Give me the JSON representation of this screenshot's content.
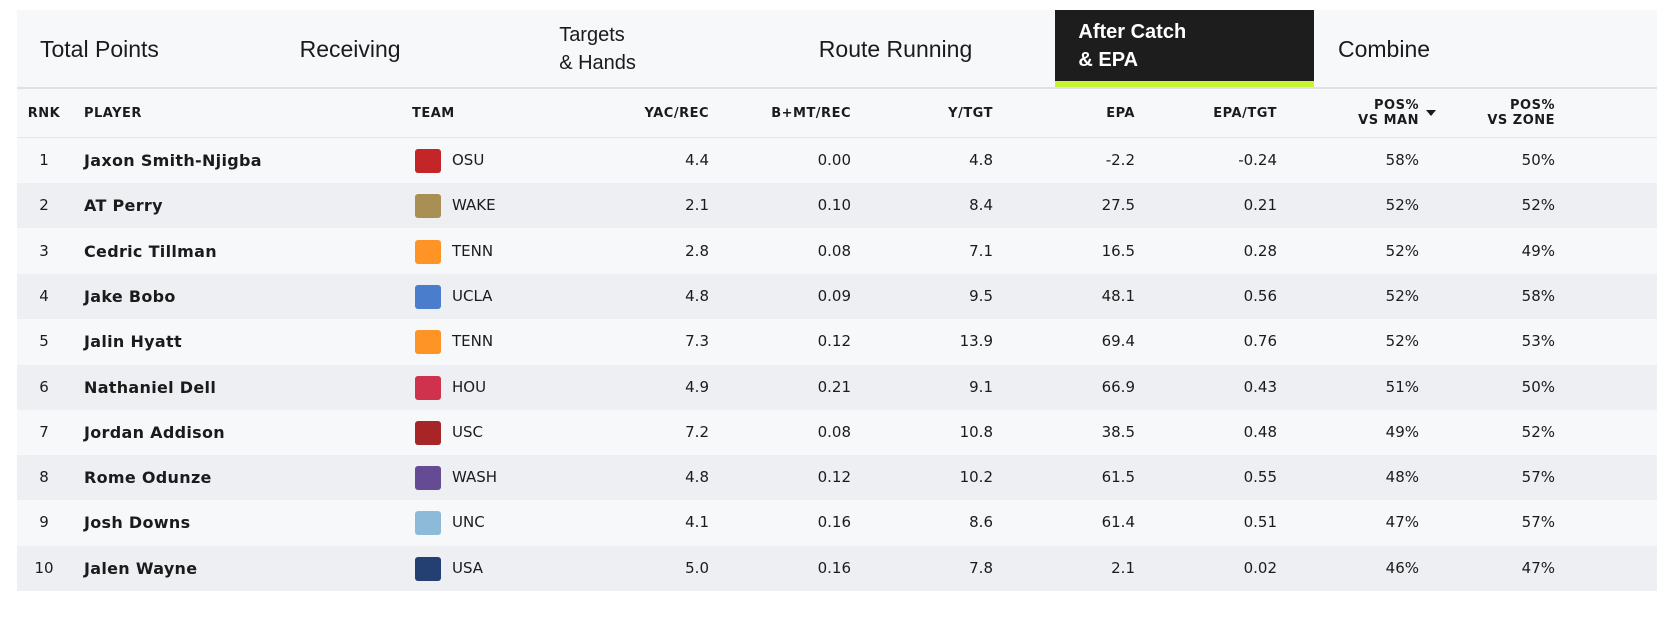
{
  "tabs": [
    [
      "Total Points"
    ],
    [
      "Receiving"
    ],
    [
      "Targets",
      "& Hands"
    ],
    [
      "Route Running"
    ],
    [
      "After Catch",
      "& EPA"
    ],
    [
      "Combine"
    ]
  ],
  "table": {
    "columns": [
      [
        "RNK"
      ],
      [
        "PLAYER"
      ],
      [
        "TEAM"
      ],
      [
        "YAC/REC"
      ],
      [
        "B+MT/REC"
      ],
      [
        "Y/TGT"
      ],
      [
        "EPA"
      ],
      [
        "EPA/TGT"
      ],
      [
        "POS%",
        "VS MAN"
      ],
      [
        "POS%",
        "VS ZONE"
      ]
    ],
    "rows": [
      [
        "1",
        "Jaxon Smith-Njigba",
        "OSU",
        "4.4",
        "0.00",
        "4.8",
        "-2.2",
        "-0.24",
        "58%",
        "50%"
      ],
      [
        "2",
        "AT Perry",
        "WAKE",
        "2.1",
        "0.10",
        "8.4",
        "27.5",
        "0.21",
        "52%",
        "52%"
      ],
      [
        "3",
        "Cedric Tillman",
        "TENN",
        "2.8",
        "0.08",
        "7.1",
        "16.5",
        "0.28",
        "52%",
        "49%"
      ],
      [
        "4",
        "Jake Bobo",
        "UCLA",
        "4.8",
        "0.09",
        "9.5",
        "48.1",
        "0.56",
        "52%",
        "58%"
      ],
      [
        "5",
        "Jalin Hyatt",
        "TENN",
        "7.3",
        "0.12",
        "13.9",
        "69.4",
        "0.76",
        "52%",
        "53%"
      ],
      [
        "6",
        "Nathaniel Dell",
        "HOU",
        "4.9",
        "0.21",
        "9.1",
        "66.9",
        "0.43",
        "51%",
        "50%"
      ],
      [
        "7",
        "Jordan Addison",
        "USC",
        "7.2",
        "0.08",
        "10.8",
        "38.5",
        "0.48",
        "49%",
        "52%"
      ],
      [
        "8",
        "Rome Odunze",
        "WASH",
        "4.8",
        "0.12",
        "10.2",
        "61.5",
        "0.55",
        "48%",
        "57%"
      ],
      [
        "9",
        "Josh Downs",
        "UNC",
        "4.1",
        "0.16",
        "8.6",
        "61.4",
        "0.51",
        "47%",
        "57%"
      ],
      [
        "10",
        "Jalen Wayne",
        "USA",
        "5.0",
        "0.16",
        "7.8",
        "2.1",
        "0.02",
        "46%",
        "47%"
      ]
    ]
  }
}
